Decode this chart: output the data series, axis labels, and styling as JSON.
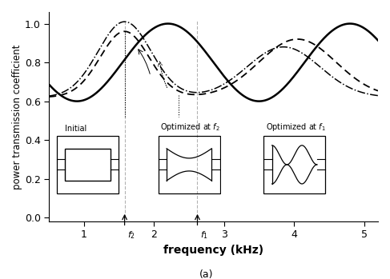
{
  "xlabel": "frequency (kHz)",
  "ylabel": "power transmission coefficient",
  "xlim": [
    0.5,
    5.2
  ],
  "ylim": [
    -0.02,
    1.06
  ],
  "yticks": [
    0,
    0.2,
    0.4,
    0.6,
    0.8,
    1
  ],
  "xticks": [
    1,
    2,
    3,
    4,
    5
  ],
  "f2": 1.58,
  "f1": 2.62,
  "background_color": "#ffffff",
  "subtitle": "(a)"
}
